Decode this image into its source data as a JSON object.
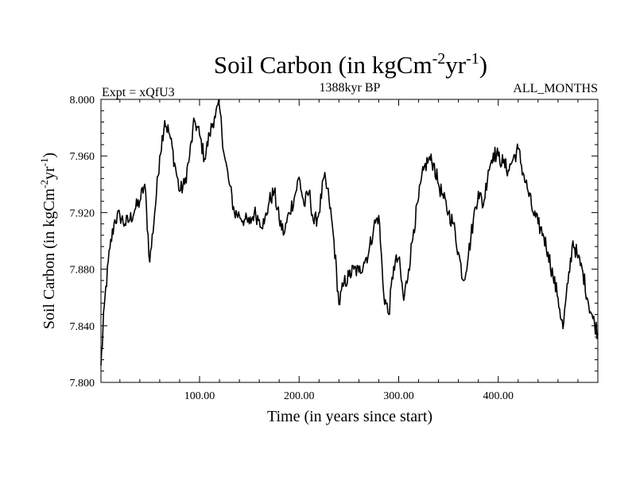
{
  "chart_data": {
    "type": "line",
    "title_main": "Soil Carbon (in kgCm",
    "title_exp1": "-2",
    "title_mid": "yr",
    "title_exp2": "-1",
    "title_close": ")",
    "experiment": "Expt = xQfU3",
    "period": "1388kyr BP",
    "months": "ALL_MONTHS",
    "xlabel": "Time (in years since start)",
    "ylabel_main": "Soil Carbon (in kgCm",
    "ylabel_exp1": "-2",
    "ylabel_mid": "yr",
    "ylabel_exp2": "-1",
    "ylabel_close": ")",
    "xlim": [
      1,
      500
    ],
    "ylim": [
      7.8,
      8.0
    ],
    "xticks": [
      100,
      200,
      300,
      400
    ],
    "xtick_labels": [
      "100.00",
      "200.00",
      "300.00",
      "400.00"
    ],
    "yticks": [
      7.8,
      7.84,
      7.88,
      7.92,
      7.96,
      8.0
    ],
    "ytick_labels": [
      "7.800",
      "7.840",
      "7.880",
      "7.920",
      "7.960",
      "8.000"
    ],
    "series": [
      {
        "name": "Soil Carbon",
        "x": [
          1,
          5,
          10,
          15,
          20,
          25,
          30,
          35,
          40,
          45,
          50,
          55,
          60,
          65,
          70,
          75,
          80,
          85,
          90,
          95,
          100,
          105,
          110,
          115,
          120,
          125,
          130,
          135,
          140,
          145,
          150,
          155,
          160,
          165,
          170,
          175,
          180,
          185,
          190,
          195,
          200,
          205,
          210,
          215,
          220,
          225,
          230,
          235,
          240,
          245,
          250,
          255,
          260,
          265,
          270,
          275,
          280,
          285,
          290,
          295,
          300,
          305,
          310,
          315,
          320,
          325,
          330,
          335,
          340,
          345,
          350,
          355,
          360,
          365,
          370,
          375,
          380,
          385,
          390,
          395,
          400,
          405,
          410,
          415,
          420,
          425,
          430,
          435,
          440,
          445,
          450,
          455,
          460,
          465,
          470,
          475,
          480,
          485,
          490,
          495,
          500
        ],
        "values": [
          7.812,
          7.86,
          7.895,
          7.915,
          7.918,
          7.912,
          7.915,
          7.922,
          7.928,
          7.94,
          7.885,
          7.92,
          7.96,
          7.985,
          7.975,
          7.955,
          7.935,
          7.94,
          7.96,
          7.985,
          7.975,
          7.958,
          7.975,
          7.988,
          7.995,
          7.96,
          7.94,
          7.92,
          7.918,
          7.915,
          7.912,
          7.92,
          7.915,
          7.912,
          7.928,
          7.935,
          7.915,
          7.905,
          7.92,
          7.93,
          7.945,
          7.925,
          7.935,
          7.912,
          7.92,
          7.945,
          7.93,
          7.9,
          7.855,
          7.87,
          7.875,
          7.88,
          7.878,
          7.885,
          7.892,
          7.91,
          7.918,
          7.862,
          7.848,
          7.882,
          7.888,
          7.858,
          7.88,
          7.908,
          7.93,
          7.95,
          7.958,
          7.955,
          7.94,
          7.93,
          7.92,
          7.912,
          7.892,
          7.872,
          7.89,
          7.915,
          7.935,
          7.925,
          7.95,
          7.962,
          7.96,
          7.955,
          7.95,
          7.958,
          7.965,
          7.948,
          7.935,
          7.92,
          7.912,
          7.905,
          7.892,
          7.875,
          7.86,
          7.838,
          7.87,
          7.9,
          7.888,
          7.878,
          7.858,
          7.845,
          7.835
        ]
      }
    ]
  }
}
